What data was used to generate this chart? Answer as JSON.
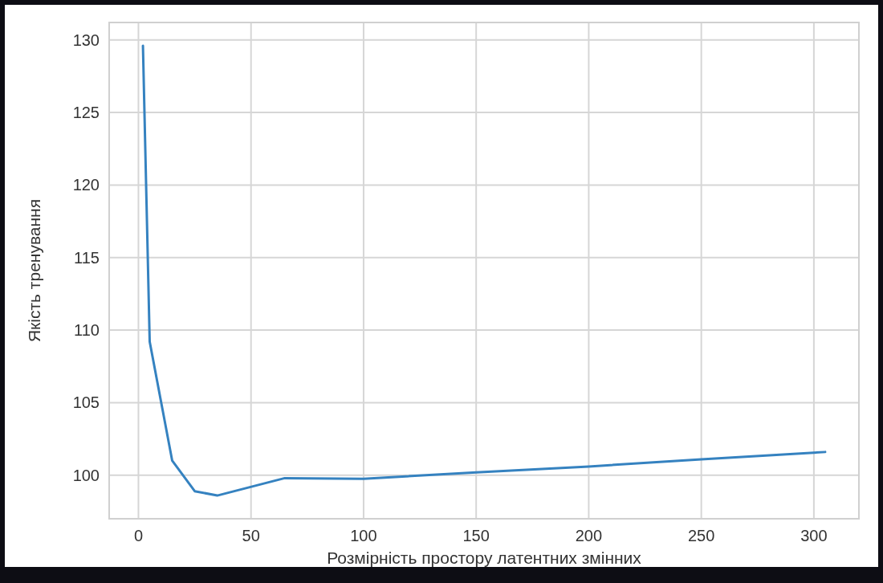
{
  "chart_data": {
    "type": "line",
    "xlabel": "Розмірність простору латентних змінних",
    "ylabel": "Якість тренування",
    "x": [
      2,
      5,
      15,
      25,
      35,
      65,
      100,
      150,
      200,
      250,
      305
    ],
    "series": [
      {
        "color": "#3582c0",
        "values": [
          129.6,
          109.2,
          101.0,
          98.9,
          98.6,
          99.8,
          99.75,
          100.2,
          100.6,
          101.1,
          101.6
        ]
      }
    ],
    "xlim": [
      -13,
      320
    ],
    "xticks": [
      0,
      50,
      100,
      150,
      200,
      250,
      300
    ],
    "ylim": [
      97,
      131.2
    ],
    "yticks": [
      100,
      105,
      110,
      115,
      120,
      125,
      130
    ],
    "grid": true
  }
}
